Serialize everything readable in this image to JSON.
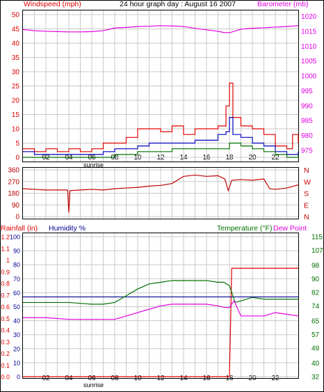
{
  "title": "24 hour graph day : August 16 2007",
  "colors": {
    "wind": "#e00000",
    "gust": "#e00000",
    "avg": "#0000c0",
    "dir": "#c00000",
    "baro": "#e000e0",
    "rain": "#e00000",
    "humidity": "#000090",
    "temp": "#007000",
    "dew": "#e000e0",
    "grid": "#c8c8c8",
    "frame": "#000000"
  },
  "x_ticks": [
    "02",
    "04",
    "06",
    "08",
    "10",
    "12",
    "14",
    "16",
    "18",
    "20",
    "22"
  ],
  "sunrise_label": "sunrise",
  "chart_data": [
    {
      "type": "line",
      "name": "wind-baro",
      "left_label": "Windspeed (mph)",
      "right_label": "Barometer (mb)",
      "x_range": [
        0,
        24
      ],
      "y_left_ticks": [
        "50",
        "45",
        "40",
        "35",
        "30",
        "25",
        "20",
        "15",
        "10",
        "5",
        "0"
      ],
      "y_left_range": [
        0,
        50
      ],
      "y_right_ticks": [
        "1020",
        "1015",
        "1010",
        "1005",
        "1000",
        "995",
        "990",
        "985",
        "980",
        "975"
      ],
      "y_right_range": [
        975,
        1022
      ],
      "series": [
        {
          "key": "gust",
          "axis": "left",
          "color": "#e00000",
          "x": [
            0,
            1,
            2,
            3,
            4,
            5,
            6,
            7,
            8,
            9,
            10,
            11,
            12,
            13,
            14,
            15,
            16,
            17,
            17.7,
            18,
            18.3,
            19,
            20,
            21,
            22,
            23,
            23.5,
            24
          ],
          "values": [
            3,
            2,
            3,
            2,
            3,
            2,
            3,
            5,
            5,
            7,
            10,
            10,
            9,
            11,
            8,
            10,
            10,
            11,
            18,
            26,
            14,
            11,
            10,
            8,
            4,
            3,
            8,
            5
          ]
        },
        {
          "key": "avg",
          "axis": "left",
          "color": "#0000c0",
          "x": [
            0,
            1,
            2,
            3,
            4,
            5,
            6,
            7,
            8,
            9,
            10,
            11,
            12,
            13,
            14,
            15,
            16,
            17,
            17.7,
            18,
            18.3,
            19,
            20,
            21,
            22,
            23,
            24
          ],
          "values": [
            2,
            1,
            1,
            1,
            1,
            1,
            1,
            2,
            3,
            3,
            4,
            5,
            5,
            5,
            5,
            6,
            6,
            8,
            9,
            14,
            8,
            7,
            5,
            4,
            2,
            1,
            2
          ]
        },
        {
          "key": "wind",
          "axis": "left",
          "color": "#007000",
          "x": [
            0,
            1,
            2,
            3,
            4,
            5,
            6,
            7,
            8,
            9,
            10,
            11,
            12,
            13,
            14,
            15,
            16,
            17,
            18,
            19,
            20,
            21,
            22,
            23,
            24
          ],
          "values": [
            0,
            0,
            0,
            0,
            0,
            0,
            0,
            0,
            1,
            1,
            2,
            2,
            2,
            3,
            3,
            3,
            3,
            3,
            5,
            4,
            3,
            2,
            1,
            0,
            1
          ]
        },
        {
          "key": "baro",
          "axis": "right",
          "color": "#e000e0",
          "x": [
            0,
            1,
            2,
            3,
            4,
            5,
            6,
            7,
            8,
            9,
            10,
            11,
            12,
            13,
            14,
            15,
            16,
            17,
            17.5,
            18,
            19,
            20,
            21,
            22,
            23,
            24
          ],
          "values": [
            1015.6,
            1015.2,
            1015.0,
            1014.9,
            1014.8,
            1014.8,
            1014.9,
            1015.2,
            1016.1,
            1016.3,
            1016.6,
            1016.7,
            1016.9,
            1016.8,
            1016.6,
            1016.0,
            1015.5,
            1015.0,
            1014.6,
            1014.5,
            1015.7,
            1016.0,
            1016.2,
            1016.4,
            1016.6,
            1016.9
          ]
        }
      ]
    },
    {
      "type": "line",
      "name": "wind-direction",
      "x_range": [
        0,
        24
      ],
      "y_left_ticks": [
        "360",
        "270",
        "180",
        "90",
        "0"
      ],
      "y_left_range": [
        0,
        360
      ],
      "y_right_ticks": [
        "N",
        "W",
        "S",
        "E",
        "N"
      ],
      "series": [
        {
          "key": "dir",
          "color": "#c00000",
          "x": [
            0,
            1,
            2,
            3,
            3.9,
            4.0,
            4.1,
            5,
            6,
            7,
            8,
            9,
            10,
            11,
            12,
            13,
            14,
            15,
            16,
            17,
            17.6,
            17.9,
            18.2,
            19,
            20,
            21,
            21.5,
            22,
            23,
            24
          ],
          "values": [
            215,
            210,
            205,
            205,
            205,
            30,
            200,
            205,
            210,
            205,
            215,
            220,
            225,
            235,
            240,
            255,
            310,
            320,
            310,
            315,
            290,
            200,
            280,
            285,
            280,
            290,
            215,
            210,
            220,
            245
          ]
        }
      ]
    },
    {
      "type": "line",
      "name": "rain-humidity-temp",
      "left_label": "Rainfall (in)",
      "humidity_label": "Humidity %",
      "temp_label": "Temperature (°F)",
      "dew_label": "Dew Point",
      "x_range": [
        0,
        24
      ],
      "y_rain_ticks": [
        "1.2",
        "1.1",
        "1",
        "0.9",
        "0.8",
        "0.7",
        "0.6",
        "0.5",
        "0.4",
        "0.3",
        "0.2",
        "0.1",
        "0.0"
      ],
      "y_rain_range": [
        0,
        1.2
      ],
      "y_hum_ticks": [
        "100",
        "90",
        "80",
        "70",
        "60",
        "50",
        "40",
        "30",
        "20",
        "10",
        "0"
      ],
      "y_hum_range": [
        0,
        100
      ],
      "y_right_ticks": [
        "115",
        "107",
        "98",
        "90",
        "82",
        "74",
        "65",
        "57",
        "49",
        "40",
        "32"
      ],
      "y_right_range": [
        32,
        115
      ],
      "series": [
        {
          "key": "rain",
          "axis": "rain",
          "color": "#e00000",
          "x": [
            0,
            18,
            18.2,
            24
          ],
          "values": [
            0,
            0,
            0.93,
            0.93
          ]
        },
        {
          "key": "humidity",
          "axis": "hum",
          "color": "#000090",
          "x": [
            0,
            24
          ],
          "values": [
            57,
            57
          ]
        },
        {
          "key": "temp",
          "axis": "temp",
          "color": "#007000",
          "x": [
            0,
            2,
            4,
            6,
            7,
            8,
            9,
            10,
            11,
            12,
            13,
            14,
            15,
            16,
            17,
            17.5,
            18,
            18.5,
            19,
            20,
            21,
            22,
            23,
            24
          ],
          "values": [
            76,
            76,
            76,
            75,
            75,
            76,
            80,
            84,
            87,
            88,
            89,
            89,
            89,
            89,
            88,
            88,
            86,
            76,
            77,
            79,
            78,
            78,
            78,
            78
          ]
        },
        {
          "key": "dew",
          "axis": "temp",
          "color": "#e000e0",
          "x": [
            0,
            2,
            4,
            6,
            7,
            8,
            9,
            10,
            11,
            12,
            13,
            14,
            15,
            16,
            17,
            17.6,
            18,
            18.4,
            19,
            20,
            21,
            22,
            23,
            24
          ],
          "values": [
            67,
            67,
            66,
            66,
            66,
            66,
            68,
            70,
            72,
            74,
            75,
            75,
            75,
            75,
            74,
            73,
            73,
            77,
            68,
            68,
            68,
            70,
            69,
            68
          ]
        }
      ]
    }
  ]
}
